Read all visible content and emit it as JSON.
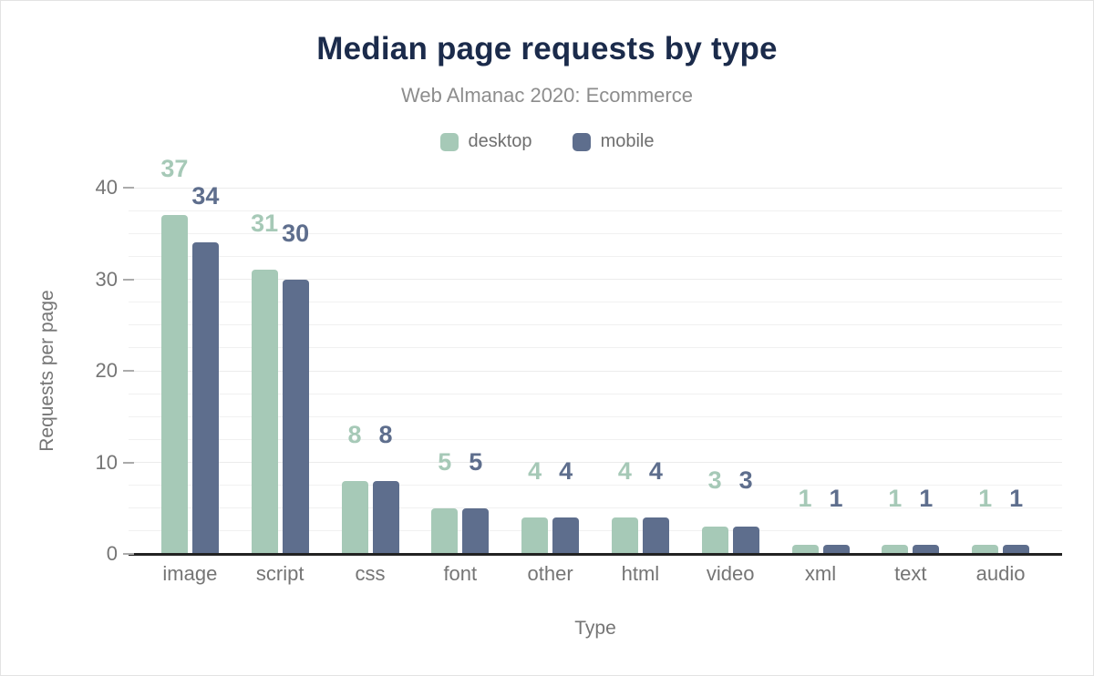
{
  "figure": {
    "title": "Median page requests by type",
    "subtitle": "Web Almanac 2020: Ecommerce"
  },
  "chart_data": {
    "type": "bar",
    "title": "Median page requests by type",
    "subtitle": "Web Almanac 2020: Ecommerce",
    "categories": [
      "image",
      "script",
      "css",
      "font",
      "other",
      "html",
      "video",
      "xml",
      "text",
      "audio"
    ],
    "series": [
      {
        "name": "desktop",
        "color": "#a6c9b7",
        "values": [
          37,
          31,
          8,
          5,
          4,
          4,
          3,
          1,
          1,
          1
        ]
      },
      {
        "name": "mobile",
        "color": "#5e6e8d",
        "values": [
          34,
          30,
          8,
          5,
          4,
          4,
          3,
          1,
          1,
          1
        ]
      }
    ],
    "xlabel": "Type",
    "ylabel": "Requests per page",
    "ylim": [
      0,
      40
    ],
    "yticks": [
      0,
      10,
      20,
      30,
      40
    ],
    "minor_gridline_step": 2.5,
    "grid": true,
    "legend_position": "top",
    "value_labels": true
  },
  "colors": {
    "title": "#1b2b4b",
    "subtitle": "#8d8d8d",
    "axis_text": "#757575",
    "axis_line": "#222222",
    "gridline": "#f1f1f1",
    "tick_mark": "#ababab",
    "background": "#ffffff",
    "border": "#e3e3e3"
  }
}
